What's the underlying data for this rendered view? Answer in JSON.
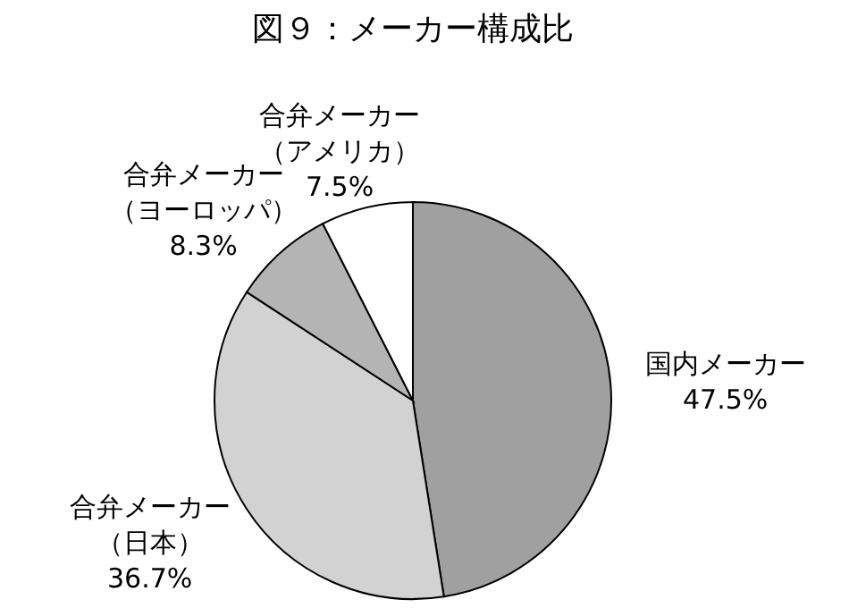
{
  "chart_data": {
    "type": "pie",
    "title": "図９：メーカー構成比",
    "categories": [
      "国内メーカー",
      "合弁メーカー（日本）",
      "合弁メーカー（ヨーロッパ）",
      "合弁メーカー（アメリカ）"
    ],
    "values": [
      47.5,
      36.7,
      8.3,
      7.5
    ],
    "value_labels": [
      "47.5%",
      "36.7%",
      "8.3%",
      "7.5%"
    ],
    "colors": [
      "#a0a0a0",
      "#d2d2d2",
      "#b4b4b4",
      "#ffffff"
    ]
  }
}
